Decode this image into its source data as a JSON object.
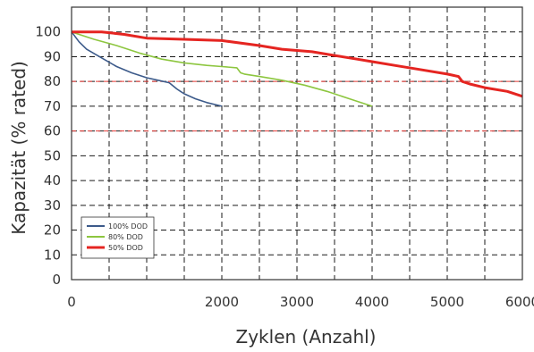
{
  "chart_data": {
    "type": "line",
    "xlabel": "Zyklen (Anzahl)",
    "ylabel": "Kapazität (% rated)",
    "xlim": [
      0,
      6000
    ],
    "ylim": [
      0,
      110
    ],
    "x_ticks": [
      "0",
      "2000",
      "3000",
      "4000",
      "5000",
      "6000"
    ],
    "x_tick_values": [
      0,
      2000,
      3000,
      4000,
      5000,
      6000
    ],
    "x_grid": [
      0,
      500,
      1000,
      1500,
      2000,
      2500,
      3000,
      3500,
      4000,
      4500,
      5000,
      5500,
      6000
    ],
    "y_ticks": [
      "0",
      "10",
      "20",
      "30",
      "40",
      "50",
      "60",
      "70",
      "80",
      "90",
      "100"
    ],
    "y_tick_values": [
      0,
      10,
      20,
      30,
      40,
      50,
      60,
      70,
      80,
      90,
      100
    ],
    "grid": true,
    "reference_lines": [
      {
        "y": 80,
        "color": "#e53935"
      },
      {
        "y": 60,
        "color": "#e53935"
      }
    ],
    "legend_position": "bottom-left",
    "series": [
      {
        "name": "100% DOD",
        "color": "#3c5a8a",
        "x": [
          0,
          100,
          200,
          400,
          600,
          800,
          1000,
          1150,
          1300,
          1400,
          1450,
          1500,
          1650,
          1800,
          2000
        ],
        "y": [
          100,
          96,
          93,
          89.5,
          86,
          83.5,
          81.5,
          80.5,
          79.5,
          77,
          76,
          75,
          73,
          71.5,
          70
        ]
      },
      {
        "name": "80% DOD",
        "color": "#8dc63f",
        "x": [
          0,
          300,
          600,
          900,
          1200,
          1500,
          1800,
          2000,
          2200,
          2250,
          2300,
          2500,
          2800,
          3100,
          3400,
          3700,
          4000
        ],
        "y": [
          100,
          97,
          94.5,
          91.5,
          89,
          87.5,
          86.5,
          86,
          85.5,
          83.5,
          83,
          82,
          80.5,
          78.5,
          76,
          73,
          70
        ]
      },
      {
        "name": "50% DOD",
        "color": "#e52521",
        "x": [
          0,
          400,
          700,
          1000,
          1500,
          2000,
          2500,
          2800,
          3000,
          3200,
          3500,
          3800,
          4000,
          4300,
          4600,
          5000,
          5150,
          5200,
          5300,
          5500,
          5800,
          6000
        ],
        "y": [
          100,
          100,
          99,
          97.5,
          97,
          96.5,
          94.5,
          93,
          92.5,
          92,
          90.5,
          89,
          88,
          86.5,
          85,
          83,
          82,
          80,
          79,
          77.5,
          76,
          74
        ]
      }
    ]
  }
}
